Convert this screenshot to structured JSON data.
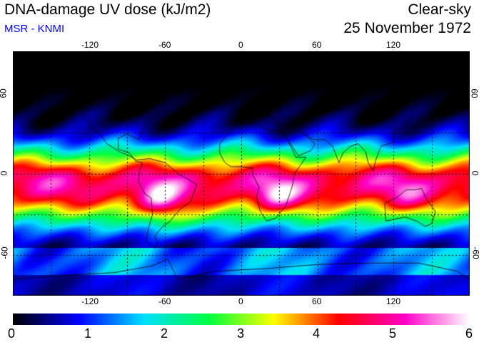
{
  "header": {
    "title": "DNA-damage UV dose (kJ/m2)",
    "subtitle": "MSR - KNMI",
    "sky": "Clear-sky",
    "date": "25 November 1972"
  },
  "map": {
    "projection": "equirectangular",
    "lon_range": [
      -180,
      180
    ],
    "lat_range": [
      -90,
      90
    ],
    "lon_ticks": [
      "-120",
      "-60",
      "0",
      "60",
      "120"
    ],
    "lat_ticks": [
      "60",
      "0",
      "-60"
    ],
    "grid_lon_step_deg": 30,
    "grid_lat_step_deg": 30,
    "grid": "dotted"
  },
  "colorbar": {
    "labels": [
      "0",
      "1",
      "2",
      "3",
      "4",
      "5",
      "6"
    ],
    "min": 0,
    "max": 6,
    "colors": [
      "#000000",
      "#0000ff",
      "#00e0ff",
      "#00ff40",
      "#ffff00",
      "#ff0000",
      "#ff00c8",
      "#ffffff"
    ]
  }
}
